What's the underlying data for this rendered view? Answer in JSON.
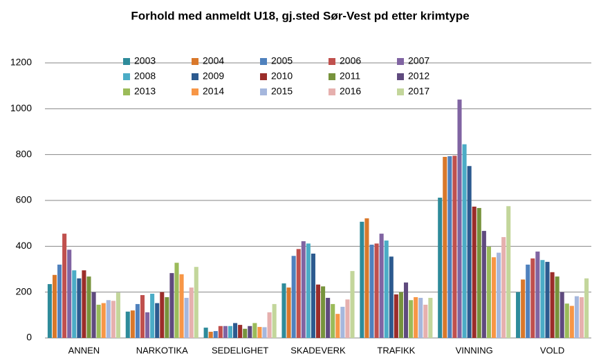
{
  "chart_data": {
    "type": "bar",
    "title": "Forhold med anmeldt U18, gj.sted Sør-Vest pd etter krimtype",
    "categories": [
      "ANNEN",
      "NARKOTIKA",
      "SEDELIGHET",
      "SKADEVERK",
      "TRAFIKK",
      "VINNING",
      "VOLD"
    ],
    "ylim": [
      0,
      1200
    ],
    "yticks": [
      0,
      200,
      400,
      600,
      800,
      1000,
      1200
    ],
    "grid": true,
    "legend": "top",
    "series": [
      {
        "name": "2003",
        "color": "#2e8b9a",
        "values": [
          235,
          115,
          45,
          238,
          507,
          612,
          200
        ]
      },
      {
        "name": "2004",
        "color": "#d9782b",
        "values": [
          275,
          120,
          27,
          220,
          522,
          790,
          255
        ]
      },
      {
        "name": "2005",
        "color": "#4f81bd",
        "values": [
          320,
          148,
          30,
          358,
          407,
          793,
          320
        ]
      },
      {
        "name": "2006",
        "color": "#c0504d",
        "values": [
          455,
          187,
          52,
          388,
          412,
          795,
          347
        ]
      },
      {
        "name": "2007",
        "color": "#8064a2",
        "values": [
          385,
          112,
          52,
          422,
          455,
          1040,
          377
        ]
      },
      {
        "name": "2008",
        "color": "#4bacc6",
        "values": [
          295,
          193,
          52,
          412,
          425,
          845,
          340
        ]
      },
      {
        "name": "2009",
        "color": "#2c5a8f",
        "values": [
          260,
          152,
          65,
          368,
          355,
          750,
          332
        ]
      },
      {
        "name": "2010",
        "color": "#9b2d2a",
        "values": [
          295,
          200,
          57,
          233,
          190,
          573,
          287
        ]
      },
      {
        "name": "2011",
        "color": "#77933c",
        "values": [
          268,
          178,
          40,
          225,
          200,
          567,
          268
        ]
      },
      {
        "name": "2012",
        "color": "#5f4a7e",
        "values": [
          200,
          283,
          52,
          175,
          242,
          467,
          200
        ]
      },
      {
        "name": "2013",
        "color": "#9bbb59",
        "values": [
          145,
          328,
          65,
          148,
          165,
          398,
          150
        ]
      },
      {
        "name": "2014",
        "color": "#f79646",
        "values": [
          152,
          278,
          48,
          105,
          178,
          352,
          140
        ]
      },
      {
        "name": "2015",
        "color": "#a5b7dd",
        "values": [
          165,
          175,
          47,
          136,
          175,
          372,
          182
        ]
      },
      {
        "name": "2016",
        "color": "#e6b0ae",
        "values": [
          162,
          220,
          112,
          168,
          145,
          440,
          178
        ]
      },
      {
        "name": "2017",
        "color": "#c3d69b",
        "values": [
          198,
          310,
          148,
          292,
          175,
          575,
          260
        ]
      }
    ]
  }
}
